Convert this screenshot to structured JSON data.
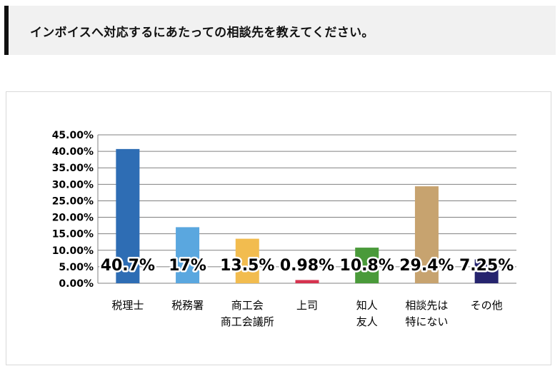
{
  "question": {
    "text": "インボイスへ対応するにあたっての相談先を教えてください。"
  },
  "chart_data": {
    "type": "bar",
    "categories": [
      [
        "税理士"
      ],
      [
        "税務署"
      ],
      [
        "商工会",
        "商工会議所"
      ],
      [
        "上司"
      ],
      [
        "知人",
        "友人"
      ],
      [
        "相談先は",
        "特にない"
      ],
      [
        "その他"
      ]
    ],
    "values": [
      40.7,
      17,
      13.5,
      0.98,
      10.8,
      29.4,
      7.25
    ],
    "data_labels": [
      "40.7%",
      "17%",
      "13.5%",
      "0.98%",
      "10.8%",
      "29.4%",
      "7.25%"
    ],
    "colors": [
      "#2e6db4",
      "#5aa7df",
      "#f2bc4f",
      "#d6334f",
      "#4a9a3a",
      "#c7a36f",
      "#26246e"
    ],
    "ylim": [
      0,
      45
    ],
    "yticks": [
      "0.00%",
      "5.00%",
      "10.00%",
      "15.00%",
      "20.00%",
      "25.00%",
      "30.00%",
      "35.00%",
      "40.00%",
      "45.00%"
    ],
    "grid": true,
    "legend": "none",
    "title": "",
    "xlabel": "",
    "ylabel": ""
  }
}
